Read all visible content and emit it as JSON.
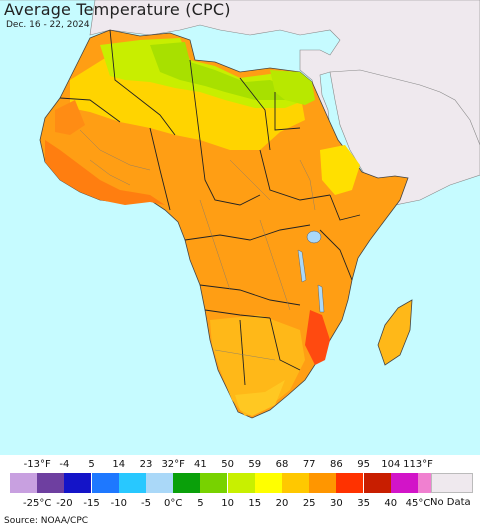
{
  "title": "Average Temperature (CPC)",
  "date_range": "Dec. 16 - 22, 2024",
  "legend": {
    "fahrenheit_ticks": [
      "-13°F",
      "-4",
      "5",
      "14",
      "23",
      "32°F",
      "41",
      "50",
      "59",
      "68",
      "77",
      "86",
      "95",
      "104",
      "113°F"
    ],
    "celsius_ticks": [
      "-25°C",
      "-20",
      "-15",
      "-10",
      "-5",
      "0°C",
      "5",
      "10",
      "15",
      "20",
      "25",
      "30",
      "35",
      "40",
      "45°C"
    ],
    "colors": [
      "#c8a0e0",
      "#6e3fa0",
      "#1414c8",
      "#1e78ff",
      "#28c8ff",
      "#aad8f8",
      "#0aa00a",
      "#78d200",
      "#c8f000",
      "#ffff00",
      "#ffc800",
      "#ff9600",
      "#ff3200",
      "#c81e00",
      "#d214c8",
      "#f080d0"
    ],
    "no_data_label": "No Data",
    "no_data_color": "#efe9ee"
  },
  "source": "Source: NOAA/CPC",
  "map_colors": {
    "ocean": "#c6fbff",
    "other_land": "#efe9ee",
    "lake": "#aad8f8"
  }
}
